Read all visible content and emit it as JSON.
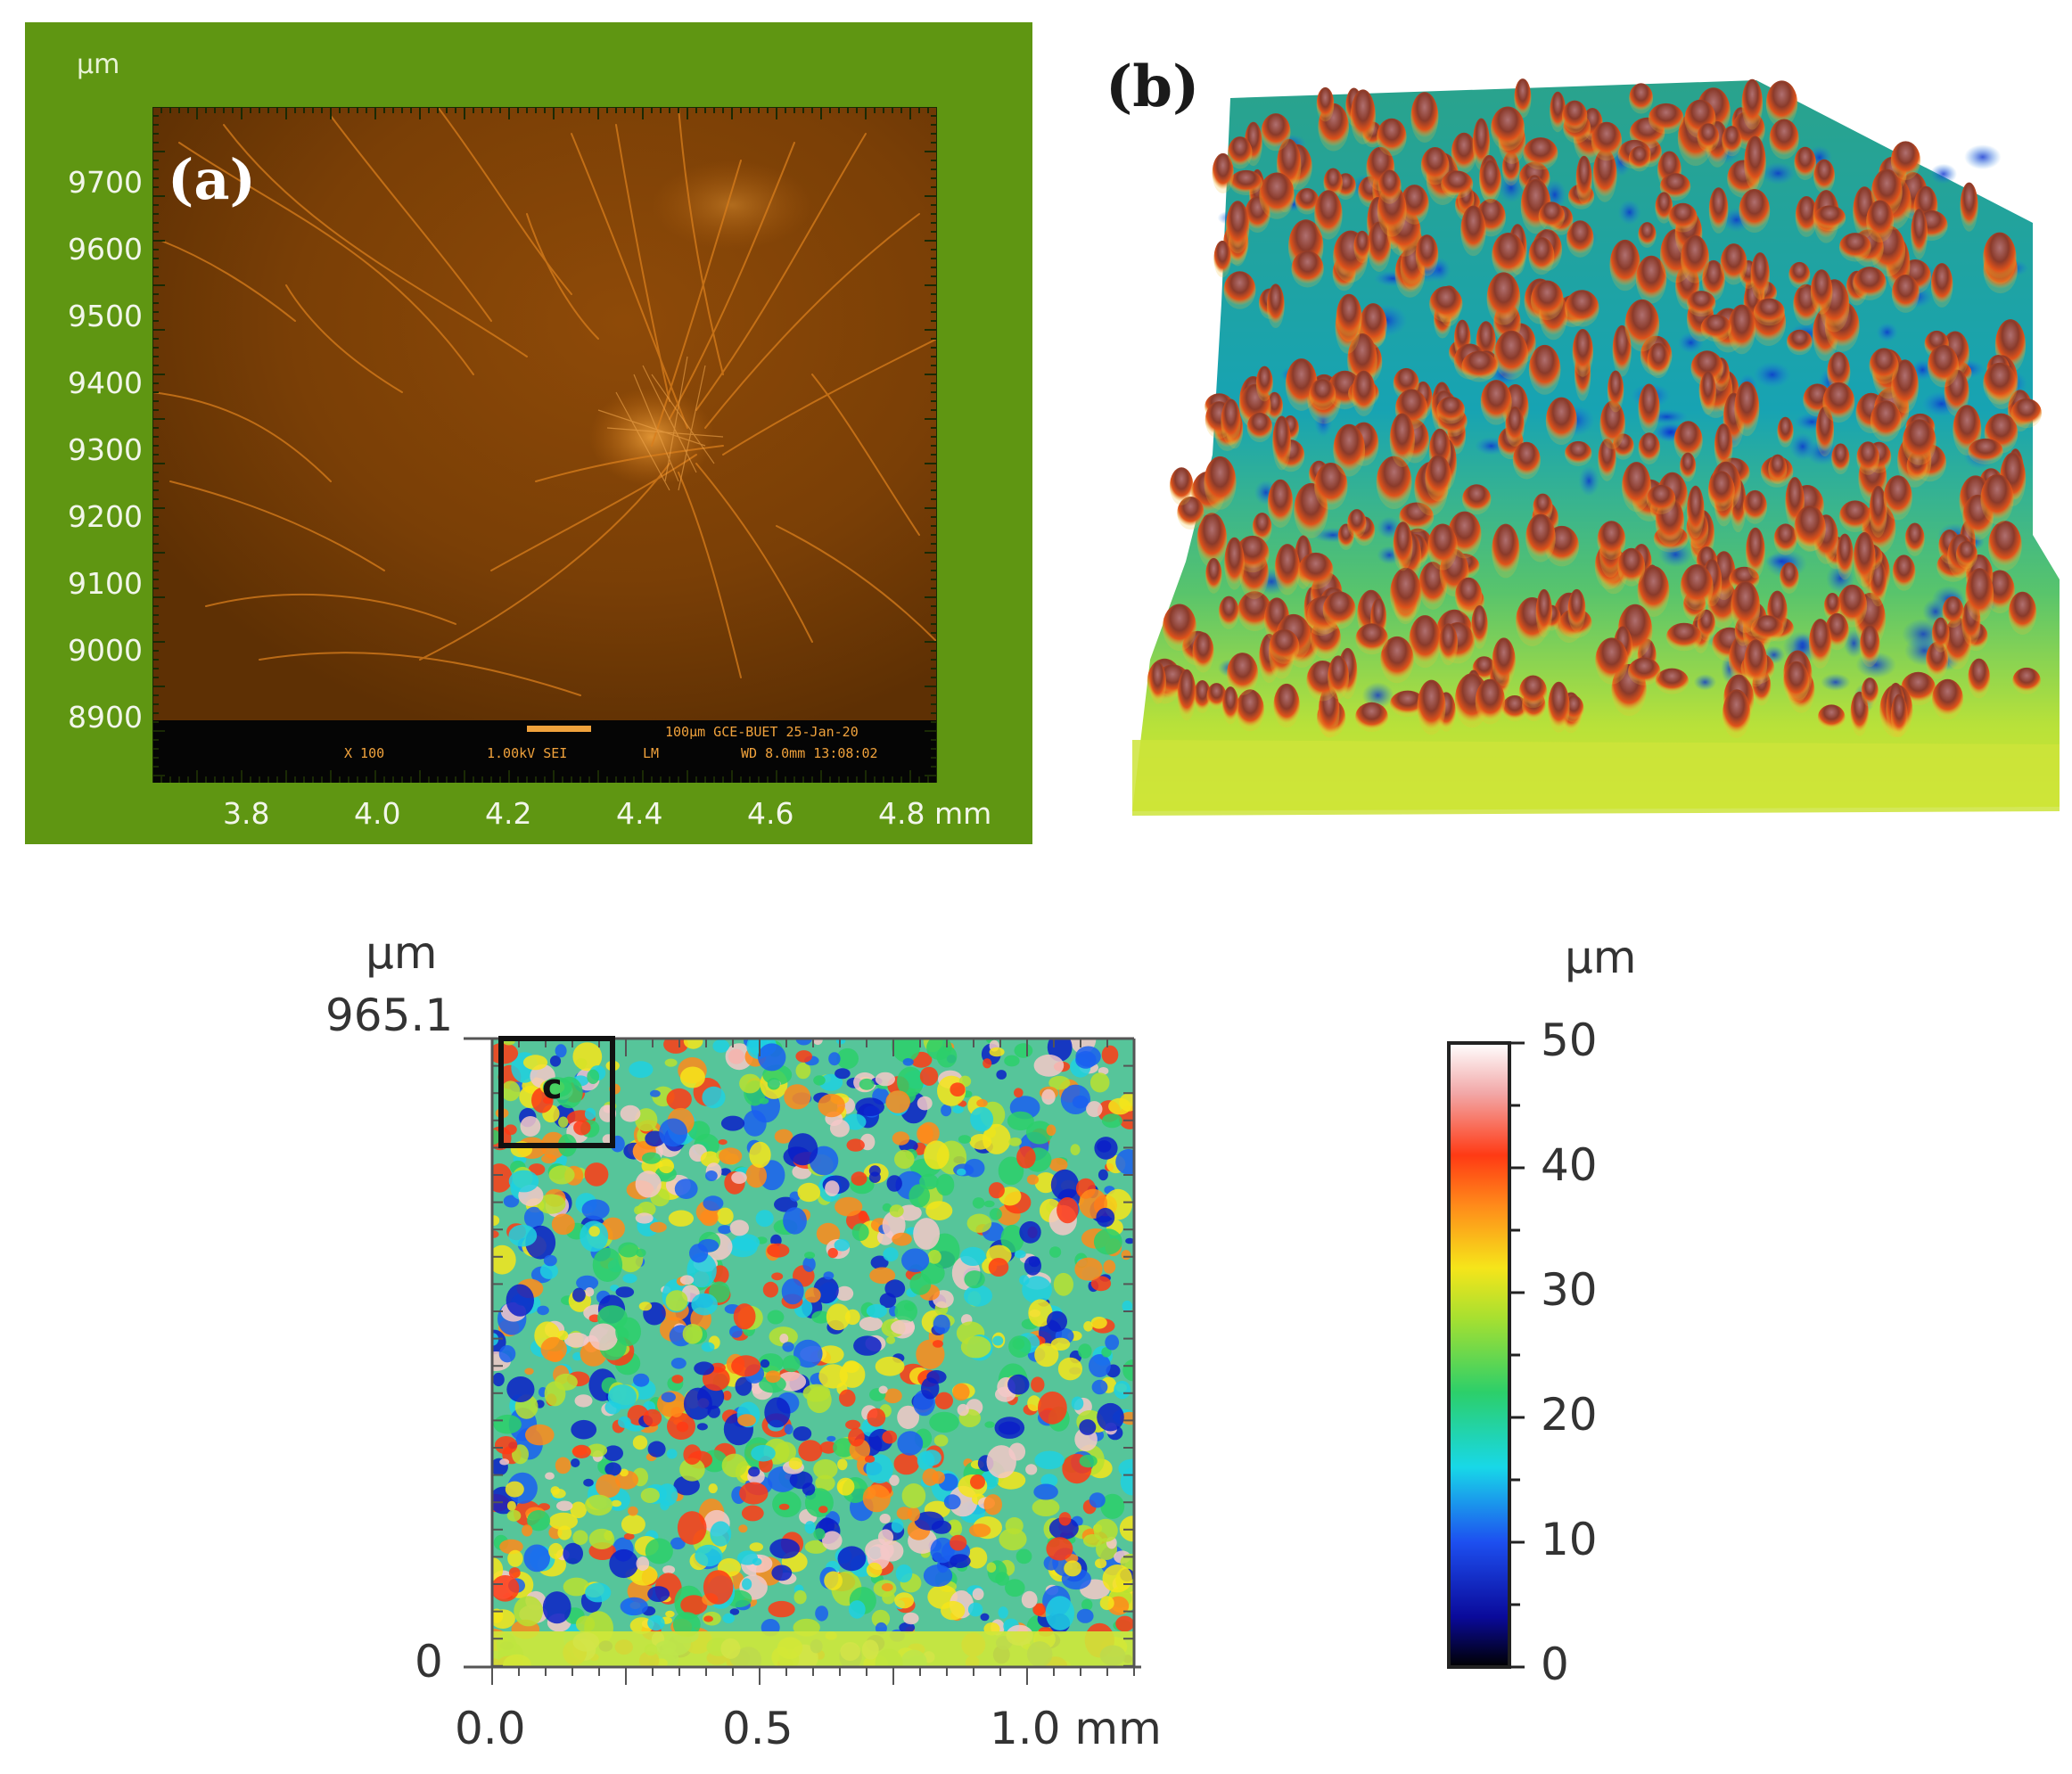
{
  "panel_a": {
    "tag": "(a)",
    "y_unit": "µm",
    "y_ticks": [
      "9700",
      "9600",
      "9500",
      "9400",
      "9300",
      "9200",
      "9100",
      "9000",
      "8900"
    ],
    "x_ticks": [
      "3.8",
      "4.0",
      "4.2",
      "4.4",
      "4.6",
      "4.8 mm"
    ],
    "info_line1": "100µm GCE-BUET 25-Jan-20",
    "info_mag": "X 100",
    "info_kv": "1.00kV SEI",
    "info_lm": "LM",
    "info_wd": "WD 8.0mm  13:08:02",
    "colors": {
      "background": "#5f9612",
      "image": "#7a3f06",
      "fiber": "#d97e1c"
    }
  },
  "panel_b": {
    "tag": "(b)"
  },
  "panel_c": {
    "y_unit": "µm",
    "y_max": "965.1",
    "y_min": "0",
    "x_ticks": [
      "0.0",
      "0.5",
      "1.0 mm"
    ],
    "region_tag": "c",
    "colorbar": {
      "unit": "µm",
      "ticks": [
        "50",
        "40",
        "30",
        "20",
        "10",
        "0"
      ],
      "range": [
        0,
        50
      ]
    }
  }
}
